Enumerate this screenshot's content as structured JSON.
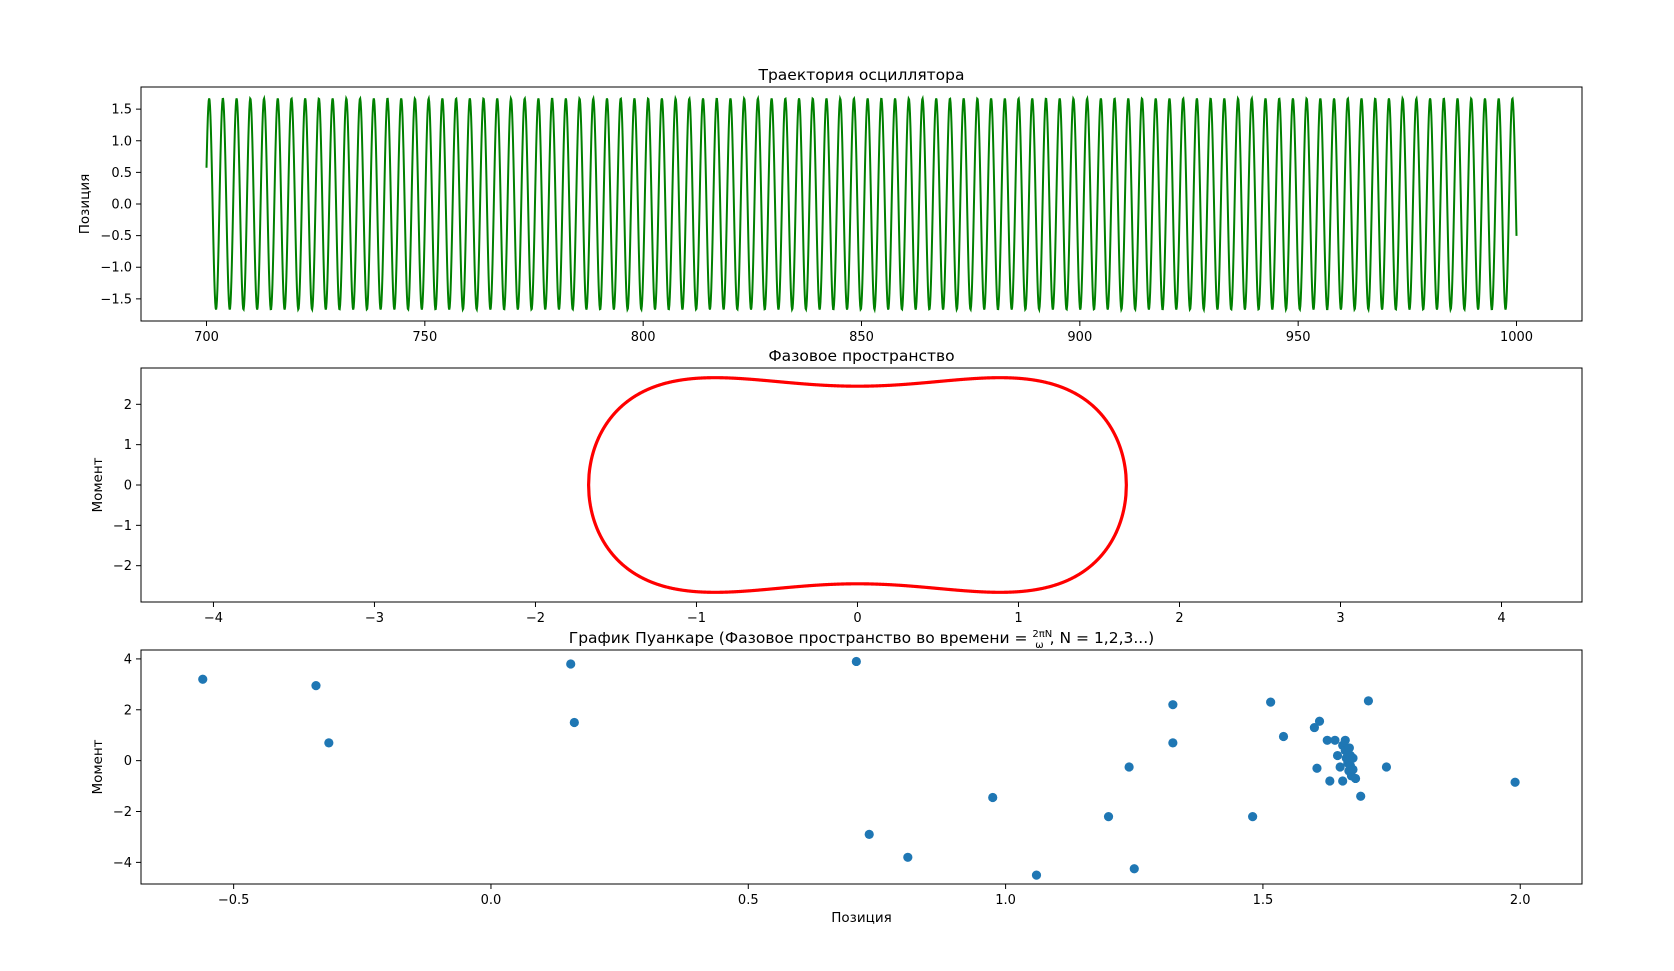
{
  "chart_data": [
    {
      "type": "line",
      "title": "Траектория осциллятора",
      "xlabel": "",
      "ylabel": "Позиция",
      "xlim": [
        685,
        1015
      ],
      "ylim": [
        -1.85,
        1.85
      ],
      "xticks": [
        700,
        750,
        800,
        850,
        900,
        950,
        1000
      ],
      "xtick_labels": [
        "700",
        "750",
        "800",
        "850",
        "900",
        "950",
        "1000"
      ],
      "yticks": [
        1.5,
        1.0,
        0.5,
        0.0,
        -0.5,
        -1.0,
        -1.5
      ],
      "ytick_labels": [
        "1.5",
        "1.0",
        "0.5",
        "0.0",
        "−0.5",
        "−1.0",
        "−1.5"
      ],
      "series": [
        {
          "color": "#008000",
          "x_range": [
            700,
            1000
          ],
          "amplitude": 1.67,
          "period": 3.14159,
          "phase": 0.35,
          "start_value": 0.58,
          "end_value": -0.27
        }
      ],
      "grid": false
    },
    {
      "type": "line",
      "title": "Фазовое пространство",
      "xlabel": "",
      "ylabel": "Момент",
      "xlim": [
        -4.45,
        4.5
      ],
      "ylim": [
        -2.9,
        2.9
      ],
      "xticks": [
        -4,
        -3,
        -2,
        -1,
        0,
        1,
        2,
        3,
        4
      ],
      "xtick_labels": [
        "−4",
        "−3",
        "−2",
        "−1",
        "0",
        "1",
        "2",
        "3",
        "4"
      ],
      "yticks": [
        2,
        1,
        0,
        -1,
        -2
      ],
      "ytick_labels": [
        "2",
        "1",
        "0",
        "−1",
        "−2"
      ],
      "series": [
        {
          "color": "#ff0000",
          "energy": 1.39,
          "x_max": 1.67,
          "p_max": 2.66,
          "p_center": 2.28
        }
      ],
      "grid": false
    },
    {
      "type": "scatter",
      "title": "График Пуанкаре (Фазовое пространство во времени = 2πN/ω, N = 1,2,3...)",
      "title_parts": {
        "before": "График Пуанкаре (Фазовое пространство во времени = ",
        "numerator": "2πN",
        "denominator": "ω",
        "after": ", N = 1,2,3...)"
      },
      "xlabel": "Позиция",
      "ylabel": "Момент",
      "xlim": [
        -0.68,
        2.12
      ],
      "ylim": [
        -4.85,
        4.35
      ],
      "xticks": [
        -0.5,
        0.0,
        0.5,
        1.0,
        1.5,
        2.0
      ],
      "xtick_labels": [
        "−0.5",
        "0.0",
        "0.5",
        "1.0",
        "1.5",
        "2.0"
      ],
      "yticks": [
        4,
        2,
        0,
        -2,
        -4
      ],
      "ytick_labels": [
        "4",
        "2",
        "0",
        "−2",
        "−4"
      ],
      "series": [
        {
          "color": "#1f77b4",
          "points": [
            [
              -0.56,
              3.2
            ],
            [
              -0.34,
              2.95
            ],
            [
              -0.315,
              0.7
            ],
            [
              0.155,
              3.8
            ],
            [
              0.162,
              1.5
            ],
            [
              0.71,
              3.9
            ],
            [
              0.735,
              -2.9
            ],
            [
              0.81,
              -3.8
            ],
            [
              0.975,
              -1.45
            ],
            [
              1.06,
              -4.5
            ],
            [
              1.2,
              -2.2
            ],
            [
              1.24,
              -0.25
            ],
            [
              1.25,
              -4.25
            ],
            [
              1.325,
              2.2
            ],
            [
              1.325,
              0.7
            ],
            [
              1.48,
              -2.2
            ],
            [
              1.515,
              2.3
            ],
            [
              1.54,
              0.95
            ],
            [
              1.6,
              1.3
            ],
            [
              1.605,
              -0.3
            ],
            [
              1.61,
              1.55
            ],
            [
              1.625,
              0.8
            ],
            [
              1.63,
              -0.8
            ],
            [
              1.64,
              0.8
            ],
            [
              1.645,
              0.2
            ],
            [
              1.65,
              -0.25
            ],
            [
              1.655,
              0.6
            ],
            [
              1.655,
              -0.8
            ],
            [
              1.66,
              0.8
            ],
            [
              1.66,
              0.4
            ],
            [
              1.662,
              0.1
            ],
            [
              1.665,
              -0.1
            ],
            [
              1.665,
              0.3
            ],
            [
              1.667,
              -0.4
            ],
            [
              1.668,
              0.5
            ],
            [
              1.668,
              0.0
            ],
            [
              1.67,
              0.2
            ],
            [
              1.67,
              -0.2
            ],
            [
              1.672,
              -0.6
            ],
            [
              1.675,
              0.1
            ],
            [
              1.675,
              -0.35
            ],
            [
              1.68,
              -0.7
            ],
            [
              1.69,
              -1.4
            ],
            [
              1.705,
              2.35
            ],
            [
              1.74,
              -0.25
            ],
            [
              1.99,
              -0.85
            ]
          ]
        }
      ],
      "grid": false
    }
  ]
}
